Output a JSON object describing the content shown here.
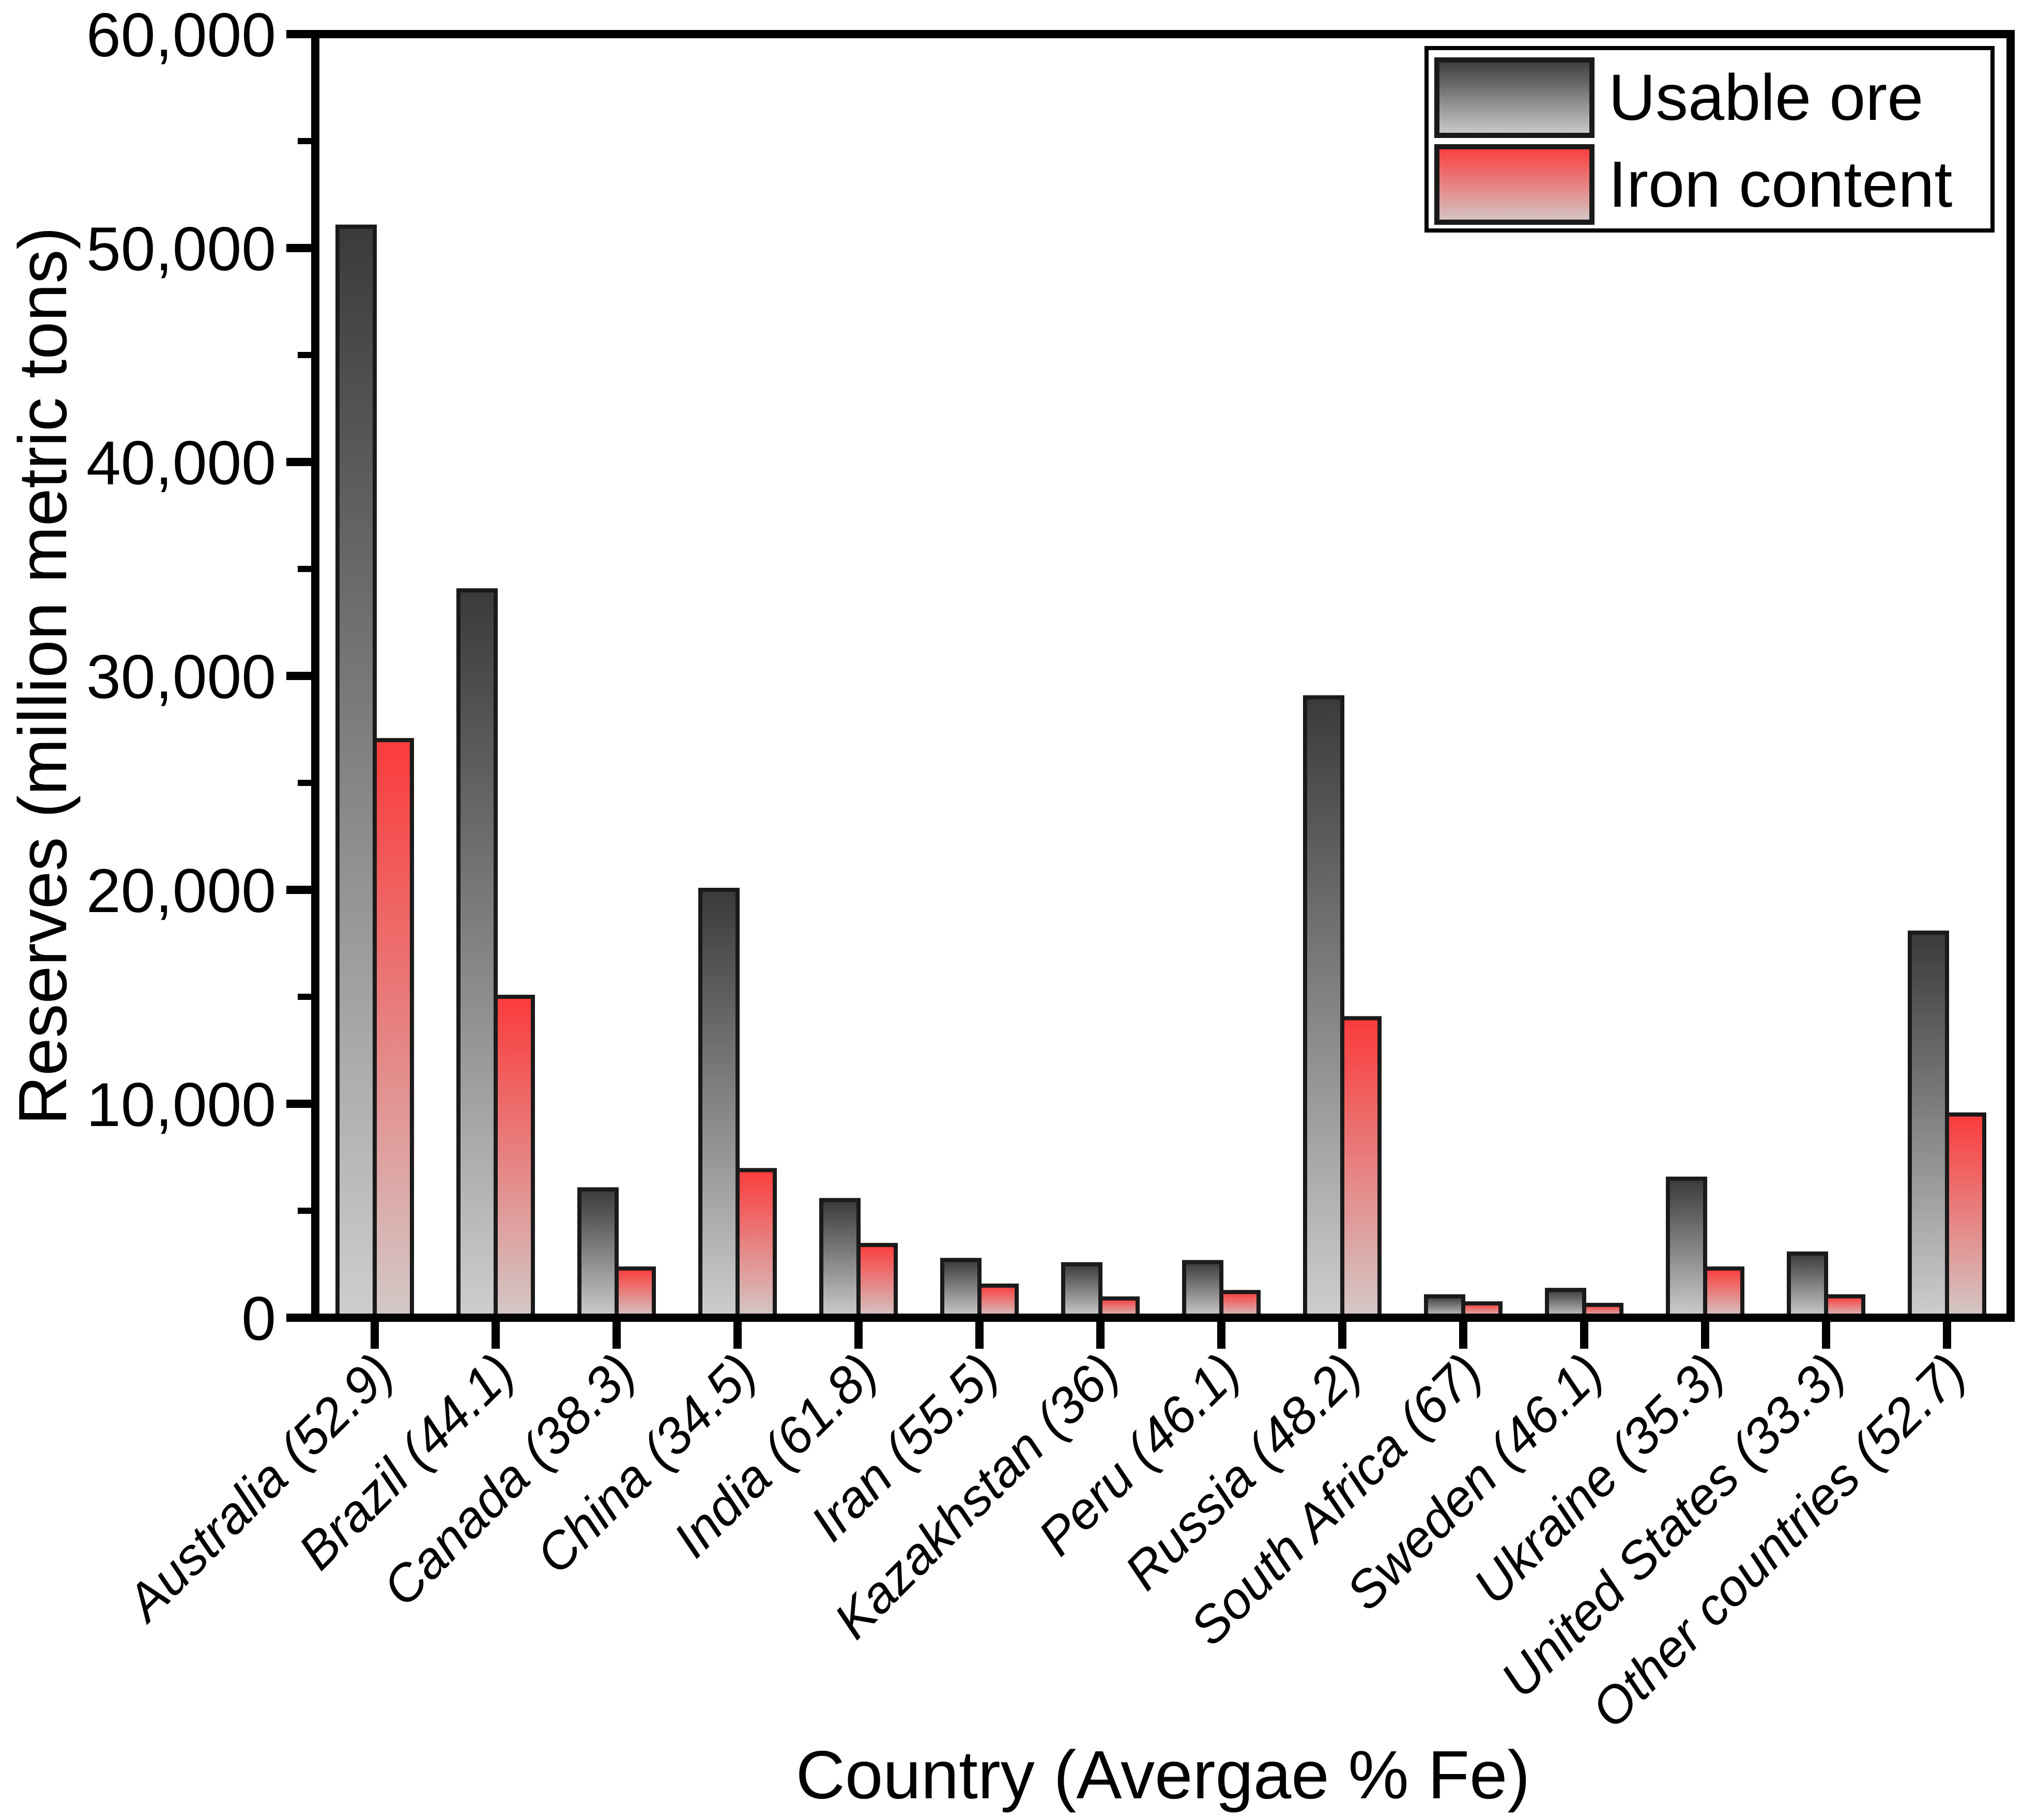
{
  "chart_data": {
    "type": "bar",
    "title": "",
    "xlabel": "Country (Avergae % Fe)",
    "ylabel": "Reserves (million metric tons)",
    "ylim": [
      0,
      60000
    ],
    "y_major_step": 10000,
    "y_minor_step": 5000,
    "y_tick_labels": [
      "0",
      "10,000",
      "20,000",
      "30,000",
      "40,000",
      "50,000",
      "60,000"
    ],
    "grid": false,
    "legend_position": "top-right",
    "categories": [
      "Australia (52.9)",
      "Brazil (44.1)",
      "Canada (38.3)",
      "China (34.5)",
      "India (61.8)",
      "Iran (55.5)",
      "Kazakhstan (36)",
      "Peru (46.1)",
      "Russia (48.2)",
      "South Africa (67)",
      "Sweden (46.1)",
      "Ukraine (35.3)",
      "United States (33.3)",
      "Other countries (52.7)"
    ],
    "series": [
      {
        "name": "Usable ore",
        "values": [
          51000,
          34000,
          6000,
          20000,
          5500,
          2700,
          2500,
          2600,
          29000,
          1000,
          1300,
          6500,
          3000,
          18000
        ],
        "fill_top": "#3a3a3a",
        "fill_bottom": "#cecece"
      },
      {
        "name": "Iron content",
        "values": [
          27000,
          15000,
          2300,
          6900,
          3400,
          1500,
          900,
          1200,
          14000,
          670,
          600,
          2300,
          1000,
          9500
        ],
        "fill_top": "#fb3b3b",
        "fill_bottom": "#d2c9c7"
      }
    ],
    "outline_color": "#1a1a1a",
    "axis_color": "#000000"
  }
}
